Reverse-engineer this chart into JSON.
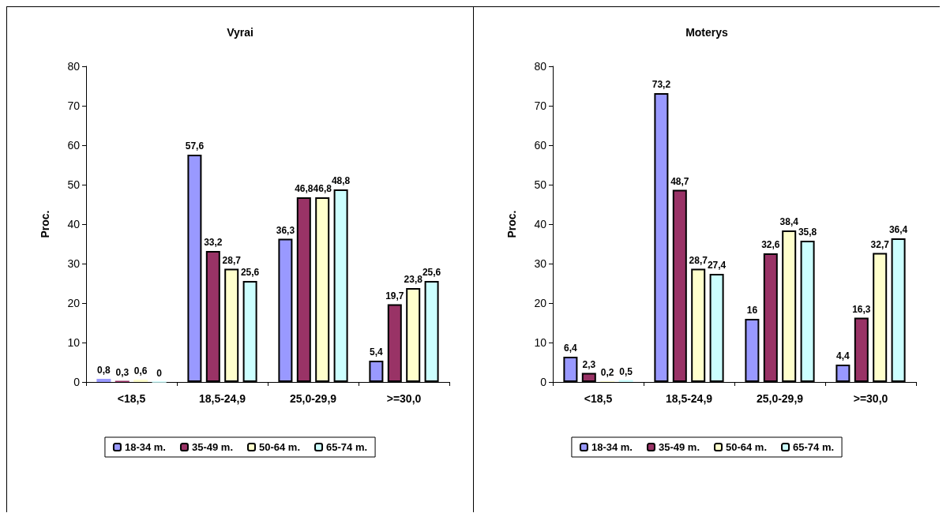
{
  "chart_data": [
    {
      "type": "bar",
      "title": "Vyrai",
      "ylabel": "Proc.",
      "categories": [
        "<18,5",
        "18,5-24,9",
        "25,0-29,9",
        ">=30,0"
      ],
      "series": [
        {
          "name": "18-34 m.",
          "color": "#9999ff",
          "values": [
            0.8,
            57.6,
            36.3,
            5.4
          ],
          "value_labels": [
            "0,8",
            "57,6",
            "36,3",
            "5,4"
          ]
        },
        {
          "name": "35-49 m.",
          "color": "#993366",
          "values": [
            0.3,
            33.2,
            46.8,
            19.7
          ],
          "value_labels": [
            "0,3",
            "33,2",
            "46,8",
            "19,7"
          ]
        },
        {
          "name": "50-64 m.",
          "color": "#ffffcc",
          "values": [
            0.6,
            28.7,
            46.8,
            23.8
          ],
          "value_labels": [
            "0,6",
            "28,7",
            "46,8",
            "23,8"
          ]
        },
        {
          "name": "65-74 m.",
          "color": "#ccffff",
          "values": [
            0,
            25.6,
            48.8,
            25.6
          ],
          "value_labels": [
            "0",
            "25,6",
            "48,8",
            "25,6"
          ]
        }
      ],
      "ylim": [
        0,
        80
      ],
      "yticks": [
        0,
        10,
        20,
        30,
        40,
        50,
        60,
        70,
        80
      ],
      "legend": "bottom"
    },
    {
      "type": "bar",
      "title": "Moterys",
      "ylabel": "Proc.",
      "categories": [
        "<18,5",
        "18,5-24,9",
        "25,0-29,9",
        ">=30,0"
      ],
      "series": [
        {
          "name": "18-34 m.",
          "color": "#9999ff",
          "values": [
            6.4,
            73.2,
            16,
            4.4
          ],
          "value_labels": [
            "6,4",
            "73,2",
            "16",
            "4,4"
          ]
        },
        {
          "name": "35-49 m.",
          "color": "#993366",
          "values": [
            2.3,
            48.7,
            32.6,
            16.3
          ],
          "value_labels": [
            "2,3",
            "48,7",
            "32,6",
            "16,3"
          ]
        },
        {
          "name": "50-64 m.",
          "color": "#ffffcc",
          "values": [
            0.2,
            28.7,
            38.4,
            32.7
          ],
          "value_labels": [
            "0,2",
            "28,7",
            "38,4",
            "32,7"
          ]
        },
        {
          "name": "65-74 m.",
          "color": "#ccffff",
          "values": [
            0.5,
            27.4,
            35.8,
            36.4
          ],
          "value_labels": [
            "0,5",
            "27,4",
            "35,8",
            "36,4"
          ]
        }
      ],
      "ylim": [
        0,
        80
      ],
      "yticks": [
        0,
        10,
        20,
        30,
        40,
        50,
        60,
        70,
        80
      ],
      "legend": "bottom"
    }
  ]
}
